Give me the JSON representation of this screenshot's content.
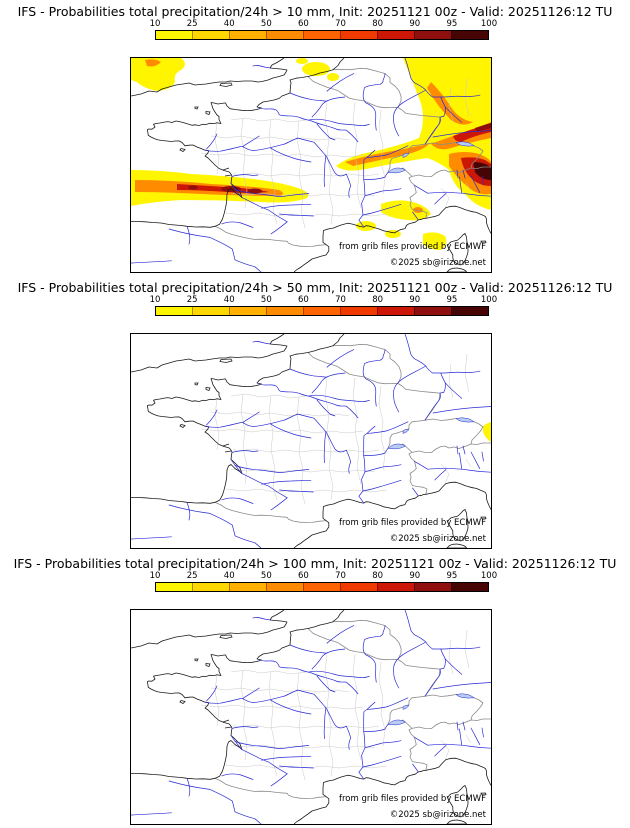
{
  "colorbar": {
    "ticks": [
      "10",
      "25",
      "40",
      "50",
      "60",
      "70",
      "80",
      "90",
      "95",
      "100"
    ],
    "colors": [
      "#fff500",
      "#ffd700",
      "#ffb000",
      "#ff8c00",
      "#ff6400",
      "#f03a00",
      "#cc1606",
      "#8f0e0e",
      "#470404"
    ]
  },
  "attribution": {
    "line1": "from grib files provided by ECMWF",
    "line2": "©2025 sb@irizone.net"
  },
  "panels": [
    {
      "id": "10mm",
      "title": "IFS - Probabilities total precipitation/24h > 10 mm, Init: 20251121 00z - Valid: 20251126:12 TU"
    },
    {
      "id": "50mm",
      "title": "IFS - Probabilities total precipitation/24h > 50 mm, Init: 20251121 00z - Valid: 20251126:12 TU"
    },
    {
      "id": "100mm",
      "title": "IFS - Probabilities total precipitation/24h > 100 mm, Init: 20251121 00z - Valid: 20251126:12 TU"
    }
  ],
  "map_colors": {
    "coastline": "#1a1a1a",
    "country_border": "#8a8a8a",
    "department_border": "#c9c9c9",
    "river": "#2929d6",
    "frame": "#000000"
  }
}
